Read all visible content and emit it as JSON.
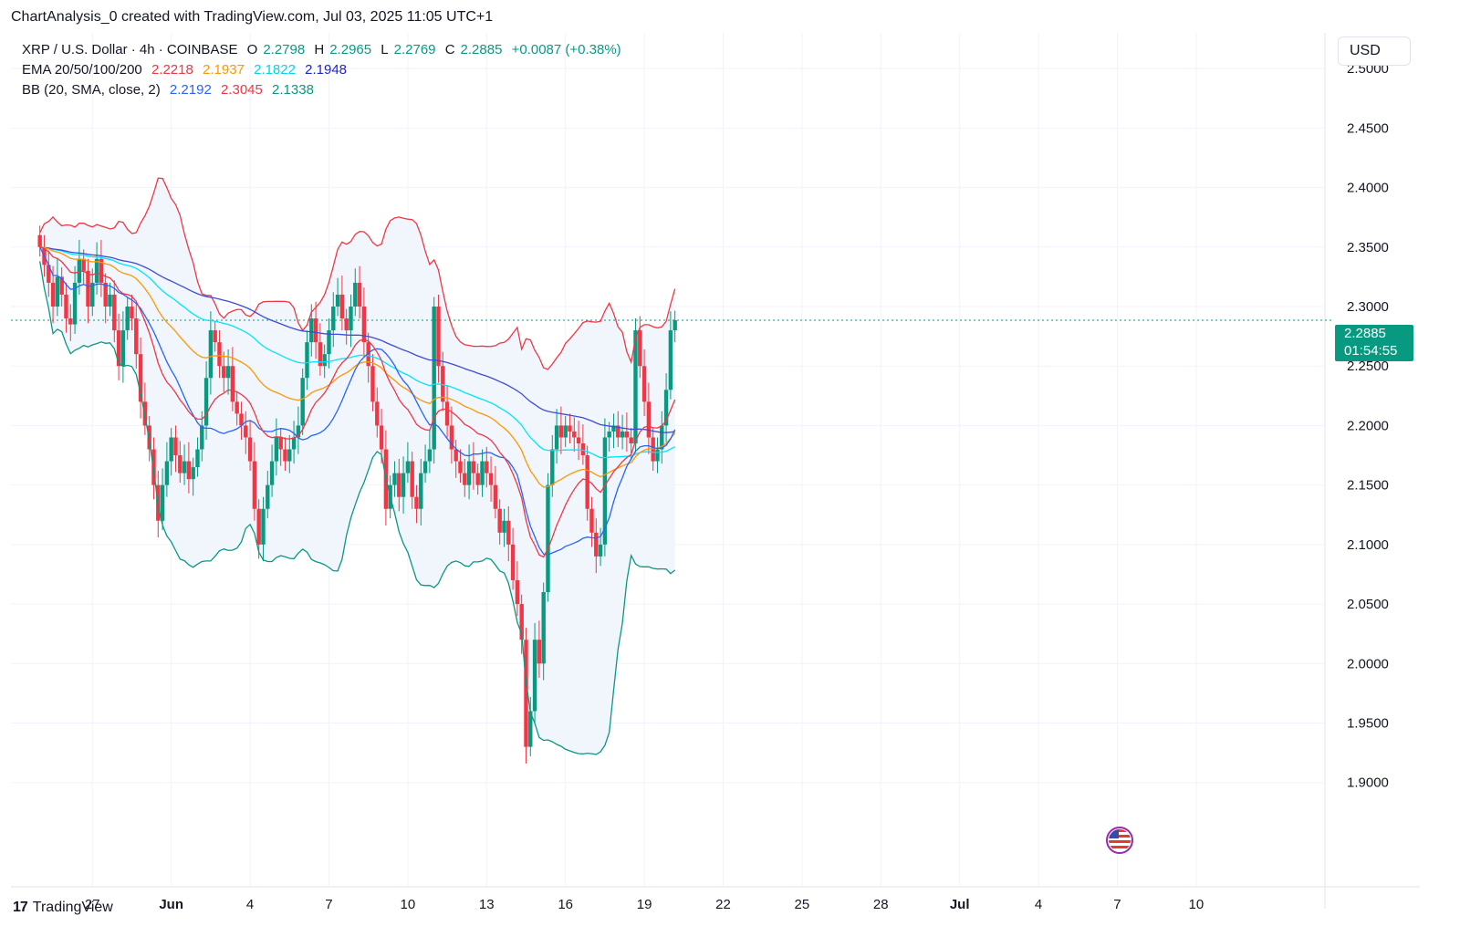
{
  "caption": "ChartAnalysis_0 created with TradingView.com, Jul 03, 2025 11:05 UTC+1",
  "legend": {
    "symbol": "XRP / U.S. Dollar · 4h · COINBASE",
    "ohlc": [
      {
        "k": "O",
        "v": "2.2798"
      },
      {
        "k": "H",
        "v": "2.2965"
      },
      {
        "k": "L",
        "v": "2.2769"
      },
      {
        "k": "C",
        "v": "2.2885"
      }
    ],
    "change": "+0.0087 (+0.38%)",
    "ema_label": "EMA 20/50/100/200",
    "ema_values": [
      "2.2218",
      "2.1937",
      "2.1822",
      "2.1948"
    ],
    "bb_label": "BB (20, SMA, close, 2)",
    "bb_values": [
      "2.2192",
      "2.3045",
      "2.1338"
    ]
  },
  "currency_button": "USD",
  "last_price": {
    "price": "2.2885",
    "countdown": "01:54:55"
  },
  "brand": "TradingView",
  "colors": {
    "up": "#089981",
    "down": "#f23645",
    "ema20": "#f23645",
    "ema50": "#ff9800",
    "ema100": "#00e5ff",
    "ema200": "#2962ff",
    "bb_basis": "#2962ff",
    "bb_upper": "#f23645",
    "bb_lower": "#089981",
    "bb_fill": "#eef5fb"
  },
  "chart_data": {
    "type": "candlestick",
    "title": "XRP / U.S. Dollar · 4h · COINBASE",
    "y_ticks": [
      "2.5000",
      "2.4500",
      "2.4000",
      "2.3500",
      "2.3000",
      "2.2500",
      "2.2000",
      "2.1500",
      "2.1000",
      "2.0500",
      "2.0000",
      "1.9500",
      "1.9000"
    ],
    "x_ticks": [
      "27",
      "Jun",
      "4",
      "7",
      "10",
      "13",
      "16",
      "19",
      "22",
      "25",
      "28",
      "Jul",
      "4",
      "7",
      "10"
    ],
    "ylim": [
      1.84,
      2.53
    ],
    "grid": true,
    "last_close": 2.2885,
    "candles_per_day": 6,
    "start_date": "2025-05-25",
    "closes": [
      2.35,
      2.335,
      2.32,
      2.3,
      2.325,
      2.31,
      2.29,
      2.285,
      2.32,
      2.34,
      2.33,
      2.3,
      2.32,
      2.34,
      2.32,
      2.3,
      2.31,
      2.28,
      2.25,
      2.28,
      2.3,
      2.29,
      2.26,
      2.22,
      2.2,
      2.18,
      2.15,
      2.12,
      2.15,
      2.17,
      2.19,
      2.175,
      2.16,
      2.17,
      2.155,
      2.165,
      2.18,
      2.2,
      2.24,
      2.28,
      2.27,
      2.25,
      2.24,
      2.25,
      2.22,
      2.21,
      2.2,
      2.19,
      2.17,
      2.13,
      2.1,
      2.13,
      2.15,
      2.17,
      2.19,
      2.18,
      2.17,
      2.18,
      2.19,
      2.2,
      2.24,
      2.27,
      2.29,
      2.27,
      2.25,
      2.26,
      2.28,
      2.3,
      2.31,
      2.29,
      2.28,
      2.3,
      2.32,
      2.3,
      2.27,
      2.25,
      2.22,
      2.2,
      2.18,
      2.13,
      2.15,
      2.16,
      2.14,
      2.16,
      2.17,
      2.14,
      2.13,
      2.16,
      2.17,
      2.18,
      2.3,
      2.25,
      2.22,
      2.2,
      2.18,
      2.17,
      2.16,
      2.15,
      2.17,
      2.16,
      2.15,
      2.17,
      2.16,
      2.15,
      2.13,
      2.11,
      2.12,
      2.1,
      2.07,
      2.05,
      2.02,
      1.93,
      1.96,
      2.02,
      2.0,
      2.06,
      2.15,
      2.18,
      2.2,
      2.19,
      2.2,
      2.195,
      2.19,
      2.185,
      2.175,
      2.13,
      2.11,
      2.09,
      2.1,
      2.19,
      2.195,
      2.2,
      2.19,
      2.195,
      2.19,
      2.185,
      2.28,
      2.25,
      2.22,
      2.19,
      2.17,
      2.18,
      2.2,
      2.23,
      2.28,
      2.2885
    ],
    "ema20_end": 2.2218,
    "ema50_end": 2.1937,
    "ema100_end": 2.1822,
    "ema200_end": 2.1948,
    "bb_basis_end": 2.2192,
    "bb_upper_end": 2.3045,
    "bb_lower_end": 2.1338
  }
}
